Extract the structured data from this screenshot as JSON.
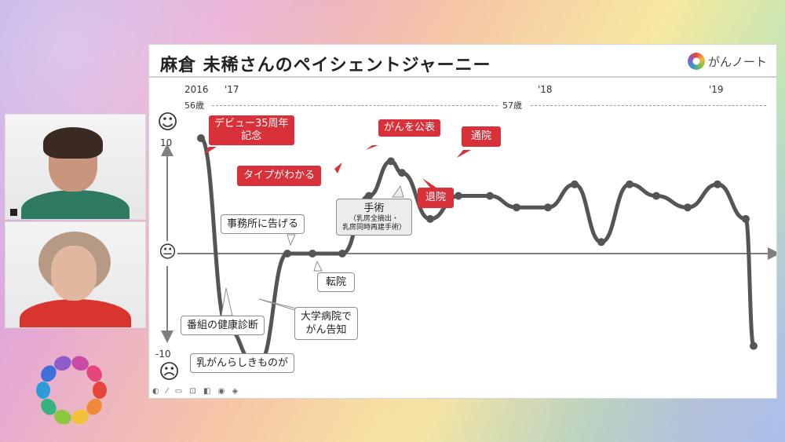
{
  "slide": {
    "title": "麻倉 未稀さんのペイシェントジャーニー",
    "brand_name": "がんノート",
    "years": [
      "2016",
      "'17",
      "'18",
      "'19"
    ],
    "ages": [
      "56歳",
      "57歳"
    ],
    "y_top": "10",
    "y_bottom": "-10",
    "faces": {
      "happy": "☺",
      "neutral": "😐",
      "sad": "☹"
    },
    "events_red": [
      {
        "text": "デビュー35周年\n記念"
      },
      {
        "text": "がんを公表"
      },
      {
        "text": "通院"
      },
      {
        "text": "タイプがわかる"
      },
      {
        "text": "退院"
      }
    ],
    "events_gray": [
      {
        "text": "事務所に告げる"
      },
      {
        "text": "転院"
      },
      {
        "text": "大学病院で\nがん告知"
      },
      {
        "text": "番組の健康診断"
      },
      {
        "text": "乳がんらしきものが"
      }
    ],
    "surgery": {
      "main": "手術",
      "sub1": "（乳房全摘出・",
      "sub2": "乳房同時再建手術）"
    },
    "controls": "◐ ⁄ ▭ ⊡ ◧ ◉ ◈"
  },
  "chart_data": {
    "type": "line",
    "xlabel": "",
    "ylabel": "",
    "ylim": [
      -10,
      10
    ],
    "x_ticks": [
      "2016",
      "'17",
      "'18",
      "'19"
    ],
    "points": [
      10,
      -6.5,
      -9.5,
      -9.5,
      0,
      0,
      0,
      5,
      8,
      7,
      3,
      5,
      5,
      4,
      4,
      6,
      1,
      6,
      5,
      4,
      6,
      3,
      -8
    ]
  },
  "colors": {
    "accent": "#d9313a",
    "line": "#555555",
    "axis": "#7f7f7f"
  }
}
